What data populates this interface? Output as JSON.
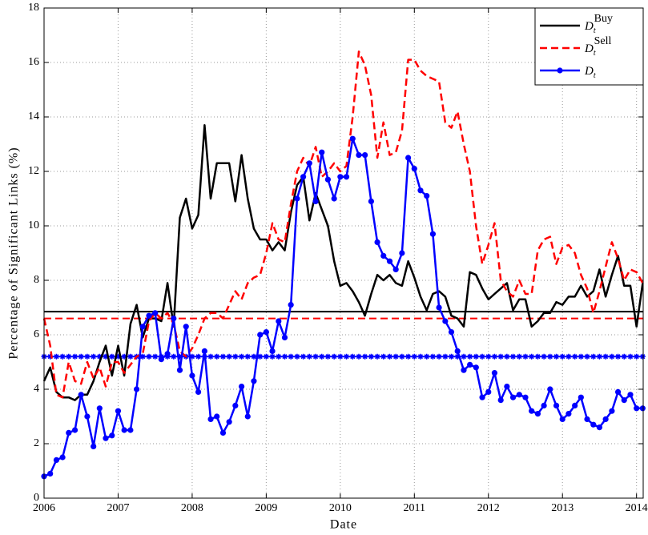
{
  "chart_data": {
    "type": "line",
    "xlabel": "Date",
    "ylabel": "Percentage of Significant Links (%)",
    "xlim": [
      2006,
      2014.09
    ],
    "ylim": [
      0,
      18
    ],
    "xticks": [
      2006,
      2007,
      2008,
      2009,
      2010,
      2011,
      2012,
      2013,
      2014
    ],
    "yticks": [
      0,
      2,
      4,
      6,
      8,
      10,
      12,
      14,
      16,
      18
    ],
    "grid": true,
    "legend": "upper right",
    "x": [
      2006,
      2006.083,
      2006.167,
      2006.25,
      2006.333,
      2006.417,
      2006.5,
      2006.583,
      2006.667,
      2006.75,
      2006.833,
      2006.917,
      2007,
      2007.083,
      2007.167,
      2007.25,
      2007.333,
      2007.417,
      2007.5,
      2007.583,
      2007.667,
      2007.75,
      2007.833,
      2007.917,
      2008,
      2008.083,
      2008.167,
      2008.25,
      2008.333,
      2008.417,
      2008.5,
      2008.583,
      2008.667,
      2008.75,
      2008.833,
      2008.917,
      2009,
      2009.083,
      2009.167,
      2009.25,
      2009.333,
      2009.417,
      2009.5,
      2009.583,
      2009.667,
      2009.75,
      2009.833,
      2009.917,
      2010,
      2010.083,
      2010.167,
      2010.25,
      2010.333,
      2010.417,
      2010.5,
      2010.583,
      2010.667,
      2010.75,
      2010.833,
      2010.917,
      2011,
      2011.083,
      2011.167,
      2011.25,
      2011.333,
      2011.417,
      2011.5,
      2011.583,
      2011.667,
      2011.75,
      2011.833,
      2011.917,
      2012,
      2012.083,
      2012.167,
      2012.25,
      2012.333,
      2012.417,
      2012.5,
      2012.583,
      2012.667,
      2012.75,
      2012.833,
      2012.917,
      2013,
      2013.083,
      2013.167,
      2013.25,
      2013.333,
      2013.417,
      2013.5,
      2013.583,
      2013.667,
      2013.75,
      2013.833,
      2013.917,
      2014,
      2014.083
    ],
    "series": [
      {
        "name": "D",
        "subscript": "t",
        "superscript": "Buy",
        "color": "#000000",
        "style": "solid",
        "values": [
          4.3,
          4.8,
          3.9,
          3.7,
          3.7,
          3.6,
          3.8,
          3.8,
          4.3,
          5.0,
          5.6,
          4.5,
          5.6,
          4.5,
          6.4,
          7.1,
          5.9,
          6.6,
          6.6,
          6.5,
          7.9,
          6.3,
          10.3,
          11.0,
          9.9,
          10.4,
          13.7,
          11.0,
          12.3,
          12.3,
          12.3,
          10.9,
          12.6,
          11.0,
          9.9,
          9.5,
          9.5,
          9.1,
          9.4,
          9.1,
          10.5,
          11.5,
          11.8,
          10.2,
          11.2,
          10.6,
          10.0,
          8.7,
          7.8,
          7.9,
          7.6,
          7.2,
          6.7,
          7.5,
          8.2,
          8.0,
          8.2,
          7.9,
          7.8,
          8.7,
          8.1,
          7.4,
          6.9,
          7.5,
          7.6,
          7.4,
          6.7,
          6.6,
          6.3,
          8.3,
          8.2,
          7.7,
          7.3,
          7.5,
          7.7,
          7.9,
          6.9,
          7.3,
          7.3,
          6.3,
          6.5,
          6.8,
          6.8,
          7.2,
          7.1,
          7.4,
          7.4,
          7.8,
          7.4,
          7.6,
          8.4,
          7.4,
          8.2,
          8.9,
          7.8,
          7.8,
          6.3,
          7.9
        ]
      },
      {
        "name": "D",
        "subscript": "t",
        "superscript": "Sell",
        "color": "#ff0000",
        "style": "dashed",
        "values": [
          6.6,
          5.6,
          3.8,
          3.7,
          5.0,
          4.3,
          4.2,
          5.0,
          4.4,
          4.8,
          4.1,
          5.0,
          5.0,
          4.6,
          4.9,
          5.2,
          5.3,
          6.5,
          6.8,
          6.6,
          6.8,
          6.4,
          5.4,
          5.2,
          5.5,
          6.0,
          6.6,
          6.8,
          6.8,
          6.6,
          7.1,
          7.6,
          7.3,
          7.9,
          8.1,
          8.2,
          9.0,
          10.1,
          9.5,
          9.4,
          10.8,
          12.0,
          12.5,
          12.2,
          12.9,
          11.8,
          12.0,
          12.3,
          12.0,
          12.2,
          14.0,
          16.4,
          15.9,
          14.8,
          12.5,
          13.8,
          12.6,
          12.7,
          13.5,
          16.1,
          16.1,
          15.7,
          15.5,
          15.4,
          15.3,
          13.8,
          13.6,
          14.2,
          13.0,
          12.0,
          10.0,
          8.6,
          9.3,
          10.1,
          8.0,
          7.6,
          7.4,
          8.0,
          7.5,
          7.5,
          9.1,
          9.5,
          9.6,
          8.6,
          9.2,
          9.3,
          9.0,
          8.2,
          7.7,
          6.8,
          7.6,
          8.5,
          9.4,
          8.8,
          8.0,
          8.4,
          8.3,
          7.9
        ]
      },
      {
        "name": "D",
        "subscript": "t",
        "color": "#0000ff",
        "style": "solid",
        "marker": "o",
        "values": [
          0.8,
          0.9,
          1.4,
          1.5,
          2.4,
          2.5,
          3.8,
          3.0,
          1.9,
          3.3,
          2.2,
          2.3,
          3.2,
          2.5,
          2.5,
          4.0,
          6.3,
          6.7,
          6.8,
          5.1,
          5.3,
          6.6,
          4.7,
          6.3,
          4.5,
          3.9,
          5.4,
          2.9,
          3.0,
          2.4,
          2.8,
          3.4,
          4.1,
          3.0,
          4.3,
          6.0,
          6.1,
          5.4,
          6.5,
          5.9,
          7.1,
          11.0,
          11.8,
          12.3,
          10.9,
          12.7,
          11.7,
          11.0,
          11.8,
          11.8,
          13.2,
          12.6,
          12.6,
          10.9,
          9.4,
          8.9,
          8.7,
          8.4,
          9.0,
          12.5,
          12.1,
          11.3,
          11.1,
          9.7,
          7.0,
          6.5,
          6.1,
          5.4,
          4.7,
          4.9,
          4.8,
          3.7,
          3.9,
          4.6,
          3.6,
          4.1,
          3.7,
          3.8,
          3.7,
          3.2,
          3.1,
          3.4,
          4.0,
          3.4,
          2.9,
          3.1,
          3.4,
          3.7,
          2.9,
          2.7,
          2.6,
          2.9,
          3.2,
          3.9,
          3.6,
          3.8,
          3.3,
          3.3
        ]
      }
    ],
    "hlines": [
      {
        "value": 6.85,
        "color": "#000000",
        "style": "solid"
      },
      {
        "value": 6.6,
        "color": "#ff0000",
        "style": "dashed"
      },
      {
        "value": 5.2,
        "color": "#0000ff",
        "style": "solid",
        "marker": "*"
      }
    ]
  }
}
